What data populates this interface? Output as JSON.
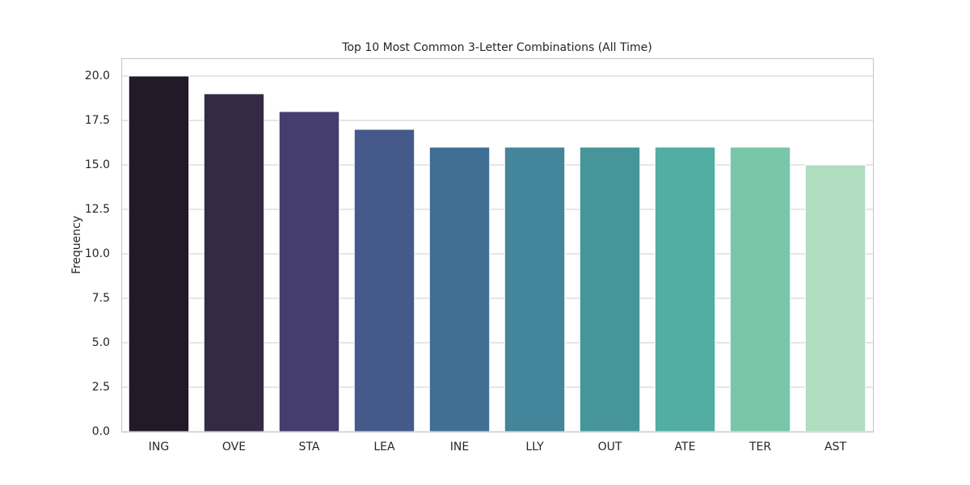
{
  "chart_data": {
    "type": "bar",
    "title": "Top 10 Most Common 3-Letter Combinations (All Time)",
    "y_label": "Frequency",
    "categories": [
      "ING",
      "OVE",
      "STA",
      "LEA",
      "INE",
      "LLY",
      "OUT",
      "ATE",
      "TER",
      "AST"
    ],
    "values": [
      20,
      19,
      18,
      17,
      16,
      16,
      16,
      16,
      16,
      15
    ],
    "colors": [
      "#231a28",
      "#352a46",
      "#443d6e",
      "#45598a",
      "#416f94",
      "#43859a",
      "#46959b",
      "#52ada2",
      "#79c6a9",
      "#b0dcc0"
    ],
    "ylim": [
      0,
      21
    ],
    "yticks": [
      {
        "value": 0,
        "label": "0.0"
      },
      2.5,
      {
        "value": 5,
        "label": "5.0"
      },
      7.5,
      {
        "value": 10,
        "label": "10.0"
      },
      12.5,
      {
        "value": 15,
        "label": "15.0"
      },
      17.5,
      {
        "value": 20,
        "label": "20.0"
      }
    ],
    "grid": true
  }
}
